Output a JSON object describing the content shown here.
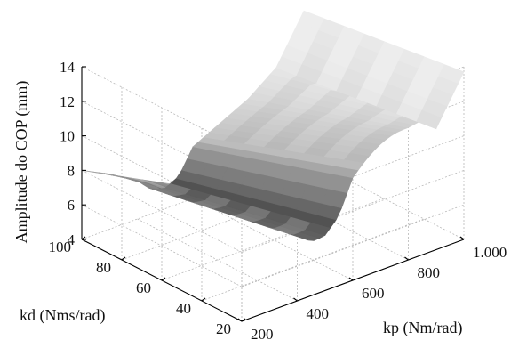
{
  "chart_data": {
    "type": "surface",
    "title": "",
    "xlabel": "kp (Nm/rad)",
    "ylabel": "kd (Nms/rad)",
    "zlabel": "Amplitude do COP (mm)",
    "x_ticks": [
      "200",
      "400",
      "600",
      "800",
      "1.000"
    ],
    "y_ticks": [
      "20",
      "40",
      "60",
      "80",
      "100"
    ],
    "z_ticks": [
      "4",
      "6",
      "8",
      "10",
      "12",
      "14"
    ],
    "xlim": [
      200,
      1000
    ],
    "ylim": [
      20,
      100
    ],
    "zlim": [
      4,
      14
    ],
    "grid": true,
    "colormap": "grayscale",
    "surface_profile_along_kp": {
      "kp": [
        200,
        300,
        400,
        450,
        500,
        550,
        600,
        700,
        800,
        900,
        1000
      ],
      "amplitude_mm": [
        8.0,
        7.2,
        6.2,
        5.4,
        5.2,
        5.6,
        7.0,
        7.8,
        8.6,
        9.8,
        12.5
      ]
    }
  }
}
